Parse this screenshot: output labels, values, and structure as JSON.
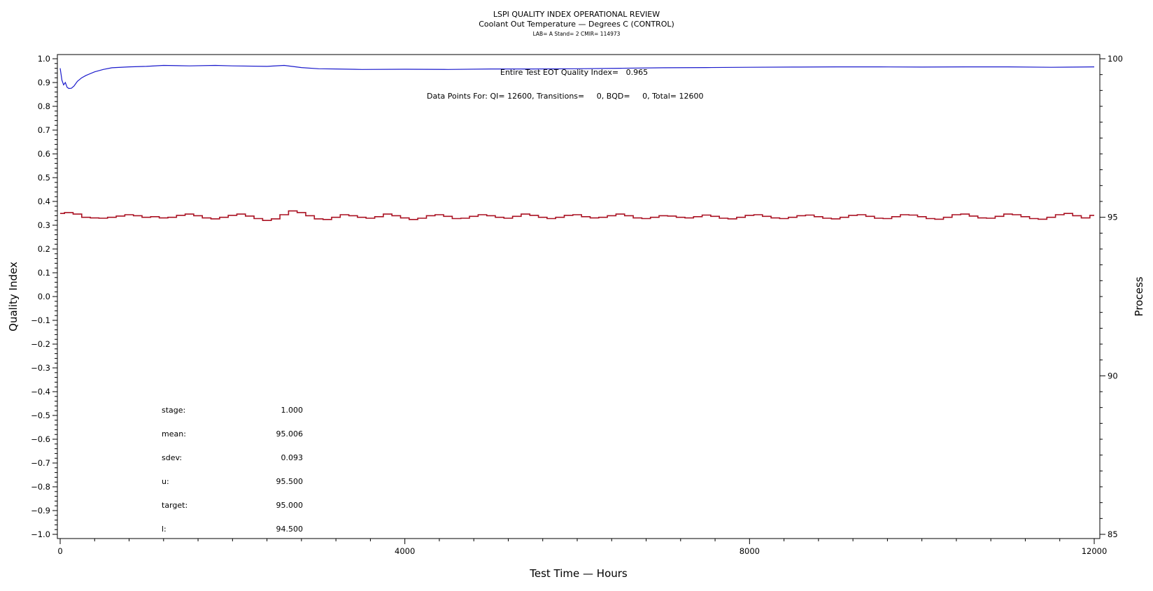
{
  "chart_data": {
    "type": "line",
    "title": "LSPI QUALITY INDEX OPERATIONAL REVIEW",
    "subtitle": "Coolant Out Temperature — Degrees C (CONTROL)",
    "subsubtitle": "LAB= A Stand= 2 CMIR= 114973",
    "xlabel": "Test Time — Hours",
    "ylabel": "Quality Index",
    "y2label": "Process",
    "xlim": [
      0,
      12000
    ],
    "ylim": [
      -1.0,
      1.0
    ],
    "y2lim": [
      85,
      100
    ],
    "x_ticks": [
      "0",
      "4000",
      "8000",
      "12000"
    ],
    "y_ticks": [
      "1.0",
      "0.9",
      "0.8",
      "0.7",
      "0.6",
      "0.5",
      "0.4",
      "0.3",
      "0.2",
      "0.1",
      "0.0",
      "−0.1",
      "−0.2",
      "−0.3",
      "−0.4",
      "−0.5",
      "−0.6",
      "−0.7",
      "−0.8",
      "−0.9",
      "−1.0"
    ],
    "y2_ticks": [
      "100",
      "95",
      "90",
      "85"
    ],
    "annotations": {
      "quality_index_line": "Entire Test EOT Quality Index=   0.965",
      "data_points_line": "Data Points For: QI= 12600, Transitions=     0, BQD=     0, Total= 12600"
    },
    "stats": [
      {
        "label": "stage:",
        "value": "1.000"
      },
      {
        "label": "mean:",
        "value": "95.006"
      },
      {
        "label": "sdev:",
        "value": "0.093"
      },
      {
        "label": "u:",
        "value": "95.500"
      },
      {
        "label": "target:",
        "value": "95.000"
      },
      {
        "label": "l:",
        "value": "94.500"
      }
    ],
    "grid": false,
    "series": [
      {
        "axis": "left",
        "color": "#1a1acc",
        "x": [
          0,
          20,
          40,
          60,
          80,
          100,
          130,
          160,
          200,
          250,
          300,
          400,
          500,
          600,
          800,
          1000,
          1200,
          1500,
          1800,
          2000,
          2400,
          2600,
          2800,
          3000,
          3200,
          3500,
          4000,
          4500,
          5000,
          5500,
          6000,
          6500,
          7000,
          7500,
          8000,
          8500,
          9000,
          9500,
          10000,
          10500,
          11000,
          11500,
          11800,
          12000
        ],
        "y": [
          0.96,
          0.91,
          0.89,
          0.9,
          0.88,
          0.875,
          0.876,
          0.885,
          0.905,
          0.92,
          0.93,
          0.945,
          0.955,
          0.962,
          0.966,
          0.968,
          0.972,
          0.97,
          0.972,
          0.97,
          0.968,
          0.972,
          0.963,
          0.958,
          0.957,
          0.955,
          0.956,
          0.955,
          0.957,
          0.957,
          0.958,
          0.96,
          0.962,
          0.963,
          0.964,
          0.965,
          0.966,
          0.966,
          0.965,
          0.966,
          0.966,
          0.964,
          0.965,
          0.966
        ]
      },
      {
        "axis": "right",
        "color": "#aa1122",
        "x": [
          0,
          100,
          200,
          300,
          400,
          500,
          600,
          700,
          800,
          900,
          1000,
          1100,
          1200,
          1300,
          1400,
          1500,
          1600,
          1700,
          1800,
          1900,
          2000,
          2100,
          2200,
          2300,
          2400,
          2500,
          2600,
          2700,
          2800,
          2900,
          3000,
          3100,
          3200,
          3300,
          3400,
          3500,
          3600,
          3700,
          3800,
          3900,
          4000,
          4100,
          4200,
          4300,
          4400,
          4500,
          4600,
          4700,
          4800,
          4900,
          5000,
          5100,
          5200,
          5300,
          5400,
          5500,
          5600,
          5700,
          5800,
          5900,
          6000,
          6100,
          6200,
          6300,
          6400,
          6500,
          6600,
          6700,
          6800,
          6900,
          7000,
          7100,
          7200,
          7300,
          7400,
          7500,
          7600,
          7700,
          7800,
          7900,
          8000,
          8100,
          8200,
          8300,
          8400,
          8500,
          8600,
          8700,
          8800,
          8900,
          9000,
          9100,
          9200,
          9300,
          9400,
          9500,
          9600,
          9700,
          9800,
          9900,
          10000,
          10100,
          10200,
          10300,
          10400,
          10500,
          10600,
          10700,
          10800,
          10900,
          11000,
          11100,
          11200,
          11300,
          11400,
          11500,
          11600,
          11700,
          11800,
          11900,
          12000
        ],
        "y": [
          95.12,
          95.15,
          95.1,
          95.0,
          94.98,
          94.97,
          95.0,
          95.04,
          95.08,
          95.05,
          95.0,
          95.02,
          94.98,
          95.0,
          95.06,
          95.1,
          95.05,
          94.98,
          94.95,
          95.0,
          95.06,
          95.1,
          95.04,
          94.96,
          94.9,
          94.95,
          95.08,
          95.2,
          95.15,
          95.05,
          94.95,
          94.93,
          95.0,
          95.08,
          95.05,
          95.0,
          94.97,
          95.02,
          95.1,
          95.05,
          94.98,
          94.93,
          94.97,
          95.05,
          95.08,
          95.03,
          94.96,
          94.97,
          95.03,
          95.08,
          95.05,
          95.0,
          94.97,
          95.03,
          95.1,
          95.06,
          95.0,
          94.96,
          95.0,
          95.06,
          95.08,
          95.02,
          94.98,
          95.0,
          95.05,
          95.1,
          95.05,
          94.98,
          94.96,
          95.0,
          95.05,
          95.04,
          95.0,
          94.98,
          95.02,
          95.07,
          95.03,
          94.97,
          94.95,
          95.0,
          95.06,
          95.08,
          95.03,
          94.98,
          94.96,
          95.0,
          95.05,
          95.07,
          95.02,
          94.97,
          94.95,
          95.0,
          95.06,
          95.08,
          95.03,
          94.97,
          94.96,
          95.02,
          95.08,
          95.07,
          95.02,
          94.96,
          94.94,
          95.0,
          95.08,
          95.1,
          95.04,
          94.98,
          94.97,
          95.03,
          95.1,
          95.08,
          95.02,
          94.96,
          94.94,
          95.0,
          95.08,
          95.12,
          95.05,
          94.98,
          95.06
        ]
      }
    ]
  }
}
